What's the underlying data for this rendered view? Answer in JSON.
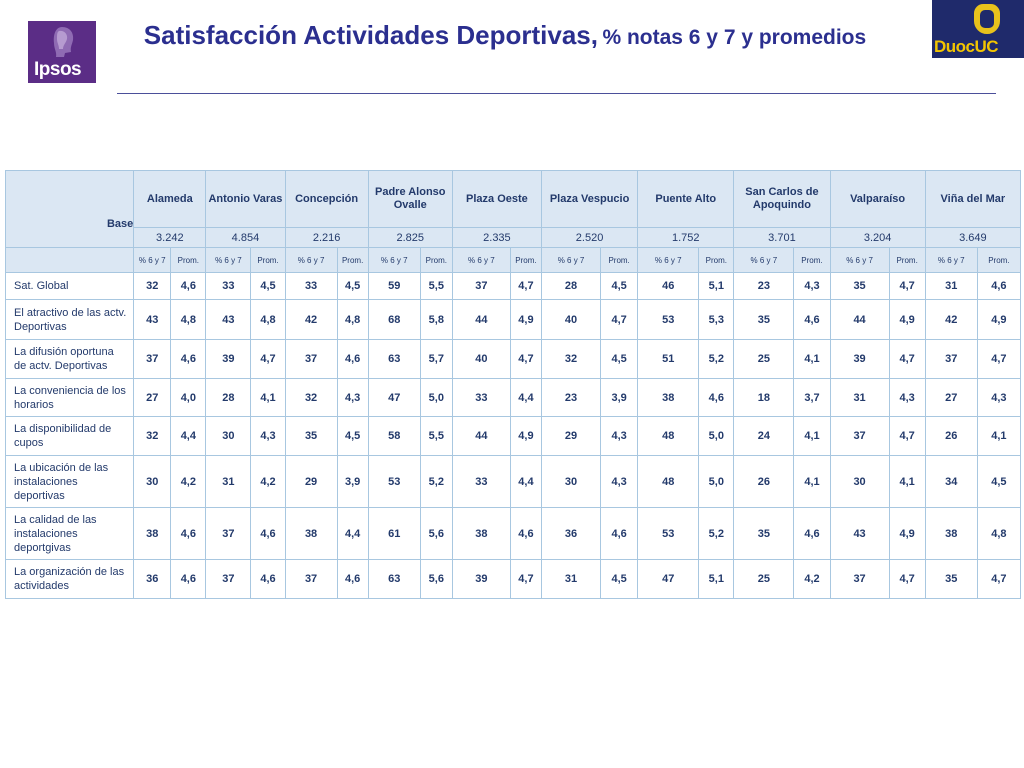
{
  "header": {
    "title_main": "Satisfacción Actividades Deportivas,",
    "title_sub": "% notas 6 y 7 y promedios",
    "logo_left": "Ipsos",
    "logo_right": "DuocUC"
  },
  "table": {
    "base_label": "Base",
    "columns": [
      "Alameda",
      "Antonio Varas",
      "Concepción",
      "Padre Alonso Ovalle",
      "Plaza Oeste",
      "Plaza Vespucio",
      "Puente Alto",
      "San Carlos de Apoquindo",
      "Valparaíso",
      "Viña del Mar"
    ],
    "bases": [
      "3.242",
      "4.854",
      "2.216",
      "2.825",
      "2.335",
      "2.520",
      "1.752",
      "3.701",
      "3.204",
      "3.649"
    ],
    "sub_pct": "% 6 y 7",
    "sub_prom": "Prom.",
    "rows": [
      {
        "label": "Sat. Global",
        "values": [
          "32",
          "4,6",
          "33",
          "4,5",
          "33",
          "4,5",
          "59",
          "5,5",
          "37",
          "4,7",
          "28",
          "4,5",
          "46",
          "5,1",
          "23",
          "4,3",
          "35",
          "4,7",
          "31",
          "4,6"
        ]
      },
      {
        "label": "El atractivo de las actv. Deportivas",
        "values": [
          "43",
          "4,8",
          "43",
          "4,8",
          "42",
          "4,8",
          "68",
          "5,8",
          "44",
          "4,9",
          "40",
          "4,7",
          "53",
          "5,3",
          "35",
          "4,6",
          "44",
          "4,9",
          "42",
          "4,9"
        ]
      },
      {
        "label": "La difusión oportuna de actv. Deportivas",
        "values": [
          "37",
          "4,6",
          "39",
          "4,7",
          "37",
          "4,6",
          "63",
          "5,7",
          "40",
          "4,7",
          "32",
          "4,5",
          "51",
          "5,2",
          "25",
          "4,1",
          "39",
          "4,7",
          "37",
          "4,7"
        ]
      },
      {
        "label": "La conveniencia de los horarios",
        "values": [
          "27",
          "4,0",
          "28",
          "4,1",
          "32",
          "4,3",
          "47",
          "5,0",
          "33",
          "4,4",
          "23",
          "3,9",
          "38",
          "4,6",
          "18",
          "3,7",
          "31",
          "4,3",
          "27",
          "4,3"
        ]
      },
      {
        "label": "La disponibilidad de cupos",
        "values": [
          "32",
          "4,4",
          "30",
          "4,3",
          "35",
          "4,5",
          "58",
          "5,5",
          "44",
          "4,9",
          "29",
          "4,3",
          "48",
          "5,0",
          "24",
          "4,1",
          "37",
          "4,7",
          "26",
          "4,1"
        ]
      },
      {
        "label": "La ubicación de las instalaciones deportivas",
        "values": [
          "30",
          "4,2",
          "31",
          "4,2",
          "29",
          "3,9",
          "53",
          "5,2",
          "33",
          "4,4",
          "30",
          "4,3",
          "48",
          "5,0",
          "26",
          "4,1",
          "30",
          "4,1",
          "34",
          "4,5"
        ]
      },
      {
        "label": "La calidad de las instalaciones deportgivas",
        "values": [
          "38",
          "4,6",
          "37",
          "4,6",
          "38",
          "4,4",
          "61",
          "5,6",
          "38",
          "4,6",
          "36",
          "4,6",
          "53",
          "5,2",
          "35",
          "4,6",
          "43",
          "4,9",
          "38",
          "4,8"
        ]
      },
      {
        "label": "La organización de las actividades",
        "values": [
          "36",
          "4,6",
          "37",
          "4,6",
          "37",
          "4,6",
          "63",
          "5,6",
          "39",
          "4,7",
          "31",
          "4,5",
          "47",
          "5,1",
          "25",
          "4,2",
          "37",
          "4,7",
          "35",
          "4,7"
        ]
      }
    ]
  }
}
